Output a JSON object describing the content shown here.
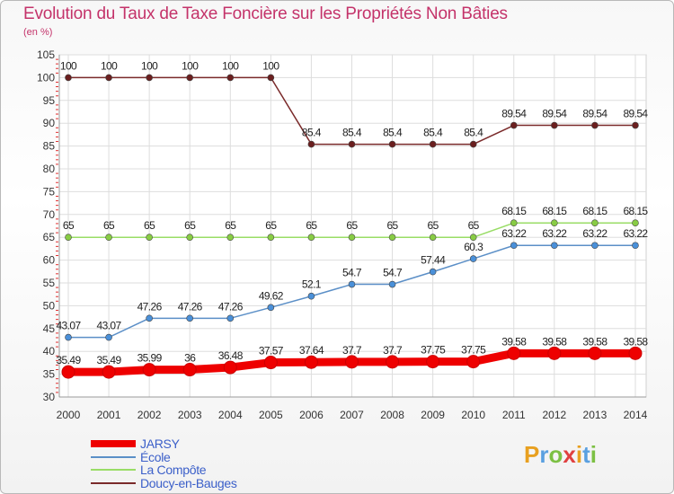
{
  "header": {
    "title": "Evolution du Taux de Taxe Foncière sur les Propriétés Non Bâties",
    "unit": "(en %)"
  },
  "chart_data": {
    "type": "line",
    "title": "Evolution du Taux de Taxe Foncière sur les Propriétés Non Bâties",
    "ylabel": "(en %)",
    "xlabel": "",
    "ylim": [
      30,
      105
    ],
    "yticks": [
      30,
      35,
      40,
      45,
      50,
      55,
      60,
      65,
      70,
      75,
      80,
      85,
      90,
      95,
      100,
      105
    ],
    "grid": true,
    "legend": "bottom-left",
    "x": [
      "2000",
      "2001",
      "2002",
      "2003",
      "2004",
      "2005",
      "2006",
      "2007",
      "2008",
      "2009",
      "2010",
      "2011",
      "2012",
      "2013",
      "2014"
    ],
    "series": [
      {
        "name": "JARSY",
        "color": "#ee0000",
        "marker": "#ee0000",
        "thick": true,
        "values": [
          35.49,
          35.49,
          35.99,
          36,
          36.48,
          37.57,
          37.64,
          37.7,
          37.7,
          37.75,
          37.75,
          39.58,
          39.58,
          39.58,
          39.58
        ],
        "labels": [
          "35.49",
          "35.49",
          "35.99",
          "36",
          "36.48",
          "37.57",
          "37.64",
          "37.7",
          "37.7",
          "37.75",
          "37.75",
          "39.58",
          "39.58",
          "39.58",
          "39.58"
        ]
      },
      {
        "name": "École",
        "color": "#5b8fc7",
        "marker": "#4a90d9",
        "values": [
          43.07,
          43.07,
          47.26,
          47.26,
          47.26,
          49.62,
          52.1,
          54.7,
          54.7,
          57.44,
          60.3,
          63.22,
          63.22,
          63.22,
          63.22
        ],
        "labels": [
          "43.07",
          "43.07",
          "47.26",
          "47.26",
          "47.26",
          "49.62",
          "52.1",
          "54.7",
          "54.7",
          "57.44",
          "60.3",
          "63.22",
          "63.22",
          "63.22",
          "63.22"
        ]
      },
      {
        "name": "La Compôte",
        "color": "#99dd66",
        "marker": "#88cc44",
        "values": [
          65,
          65,
          65,
          65,
          65,
          65,
          65,
          65,
          65,
          65,
          65,
          68.15,
          68.15,
          68.15,
          68.15
        ],
        "labels": [
          "65",
          "65",
          "65",
          "65",
          "65",
          "65",
          "65",
          "65",
          "65",
          "65",
          "65",
          "68.15",
          "68.15",
          "68.15",
          "68.15"
        ]
      },
      {
        "name": "Doucy-en-Bauges",
        "color": "#7a2a2a",
        "marker": "#6b1f1f",
        "values": [
          100,
          100,
          100,
          100,
          100,
          100,
          85.4,
          85.4,
          85.4,
          85.4,
          85.4,
          89.54,
          89.54,
          89.54,
          89.54
        ],
        "labels": [
          "100",
          "100",
          "100",
          "100",
          "100",
          "100",
          "85.4",
          "85.4",
          "85.4",
          "85.4",
          "85.4",
          "89.54",
          "89.54",
          "89.54",
          "89.54"
        ]
      }
    ]
  },
  "legend": {
    "items": [
      {
        "label": "JARSY",
        "color": "#ee0000"
      },
      {
        "label": "École",
        "color": "#5b8fc7"
      },
      {
        "label": "La Compôte",
        "color": "#99dd66"
      },
      {
        "label": "Doucy-en-Bauges",
        "color": "#7a2a2a"
      }
    ]
  },
  "logo": {
    "letters": [
      "P",
      "r",
      "o",
      "x",
      "i",
      "t",
      "i"
    ],
    "colors": [
      "#e8a020",
      "#5aa0e0",
      "#7cc043",
      "#e04040",
      "#e8a020",
      "#5aa0e0",
      "#7cc043"
    ]
  }
}
